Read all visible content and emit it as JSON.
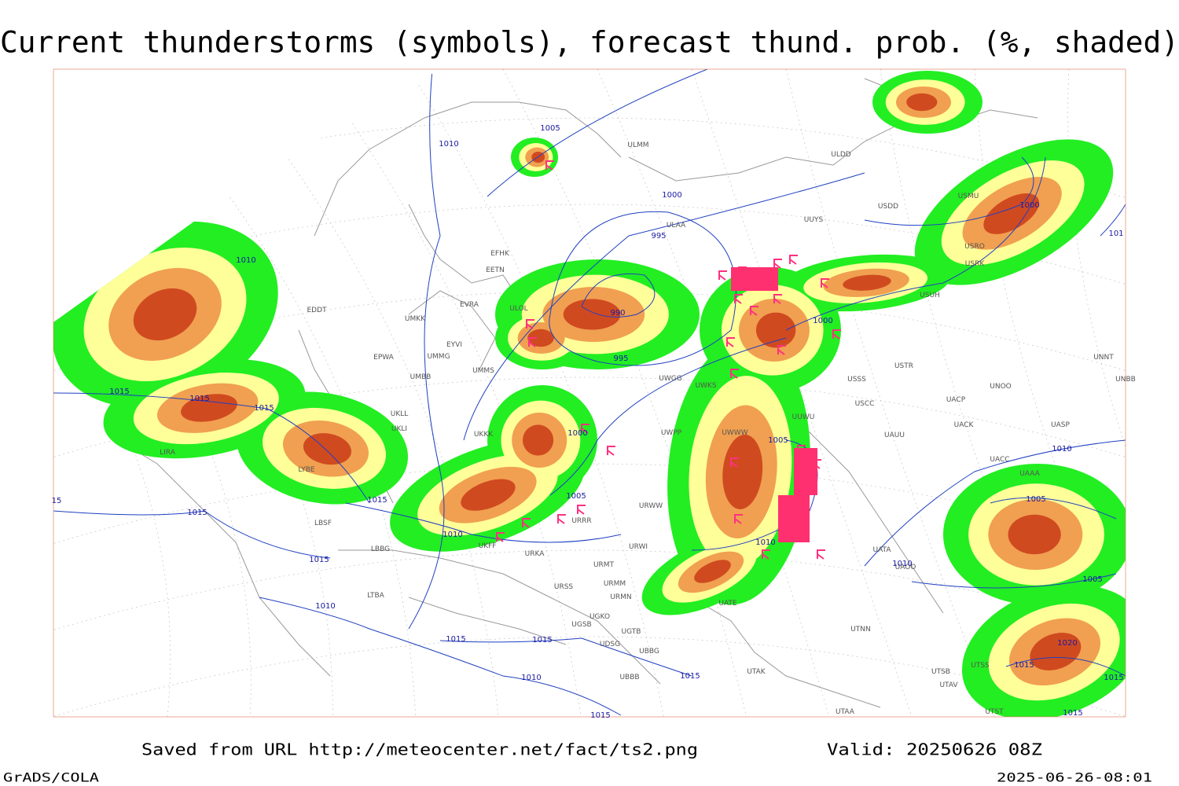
{
  "header": {
    "title": "Current thunderstorms (symbols), forecast thund. prob. (%, shaded)"
  },
  "map": {
    "stations": [
      "ULMM",
      "ULDD",
      "ULAA",
      "UUYS",
      "USDD",
      "USMU",
      "USRO",
      "USRK",
      "USUH",
      "EFHK",
      "EETN",
      "EVRA",
      "ULOL",
      "UMKK",
      "EDDT",
      "EYVI",
      "UMMG",
      "EPWA",
      "UMBB",
      "UMMS",
      "UWGG",
      "UWKS",
      "USSS",
      "USTR",
      "UNOO",
      "UNNT",
      "UNBB",
      "UACP",
      "USCC",
      "UUWU",
      "UKLL",
      "UKLI",
      "UKKK",
      "UWWW",
      "UWPP",
      "UAUU",
      "UACK",
      "UASP",
      "UACC",
      "LIRA",
      "LYBE",
      "LBSF",
      "UKFF",
      "URKA",
      "URRR",
      "URWW",
      "URWI",
      "URMT",
      "URMM",
      "URMN",
      "URSS",
      "LTBA",
      "UGKO",
      "UGSB",
      "UGTB",
      "UDSG",
      "UBBG",
      "UBBB",
      "UATE",
      "UATA",
      "UTNN",
      "UTAK",
      "UTSS",
      "UTSB",
      "UTAV",
      "UTST",
      "UTAA",
      "LBBG",
      "UAAA",
      "UAOO"
    ],
    "isobars": [
      "1010",
      "1005",
      "1000",
      "995",
      "990",
      "995",
      "1000",
      "1000",
      "1010",
      "1015",
      "1015",
      "1015",
      "1000",
      "1005",
      "1005",
      "1015",
      "1015",
      "1010",
      "1010",
      "1015",
      "1010",
      "1015",
      "1015",
      "1010",
      "1015",
      "1015",
      "1010",
      "1005",
      "1010",
      "1005",
      "1020",
      "1015",
      "1015",
      "1015",
      "101",
      "15"
    ]
  },
  "footer": {
    "source": "Saved from URL http://meteocenter.net/fact/ts2.png",
    "valid": "Valid: 20250626 08Z",
    "software": "GrADS/COLA",
    "timestamp": "2025-06-26-08:01"
  }
}
